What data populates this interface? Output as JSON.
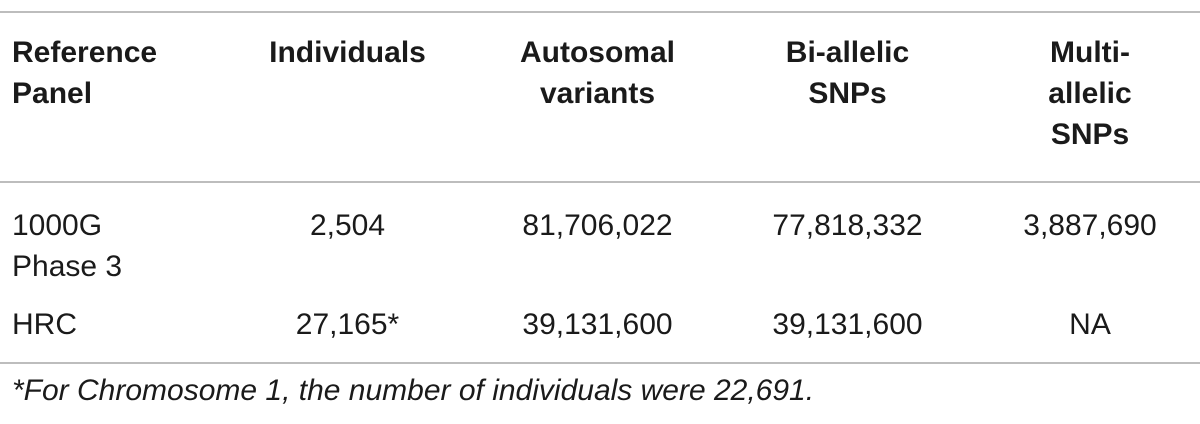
{
  "table": {
    "headers": [
      [
        "Reference",
        "Panel"
      ],
      [
        "Individuals"
      ],
      [
        "Autosomal",
        "variants"
      ],
      [
        "Bi-allelic",
        "SNPs"
      ],
      [
        "Multi-",
        "allelic",
        "SNPs"
      ]
    ],
    "rows": [
      {
        "panel": [
          "1000G",
          "Phase 3"
        ],
        "individuals": "2,504",
        "autosomal_variants": "81,706,022",
        "biallelic_snps": "77,818,332",
        "multiallelic_snps": "3,887,690"
      },
      {
        "panel": [
          "HRC"
        ],
        "individuals": "27,165*",
        "autosomal_variants": "39,131,600",
        "biallelic_snps": "39,131,600",
        "multiallelic_snps": "NA"
      }
    ],
    "footnote": "*For Chromosome 1, the number of individuals were 22,691."
  }
}
